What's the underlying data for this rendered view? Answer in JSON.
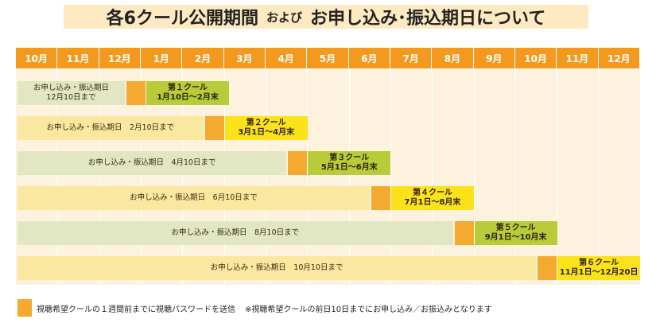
{
  "title": {
    "main": "各6クール公開期間",
    "mid": "および",
    "tail": "お申し込み･振込期日について"
  },
  "months": [
    "10月",
    "11月",
    "12月",
    "1月",
    "2月",
    "3月",
    "4月",
    "5月",
    "6月",
    "7月",
    "8月",
    "9月",
    "10月",
    "11月",
    "12月"
  ],
  "rows": [
    {
      "deadline_lines": [
        "お申し込み・振込期日",
        "12月10日まで"
      ],
      "cool_name": "第１クール",
      "cool_period": "1月10日～2月末",
      "style": "green"
    },
    {
      "deadline_lines": [
        "お申し込み・振込期日　2月10日まで"
      ],
      "cool_name": "第２クール",
      "cool_period": "3月1日～4月末",
      "style": "yellow"
    },
    {
      "deadline_lines": [
        "お申し込み・振込期日　4月10日まで"
      ],
      "cool_name": "第３クール",
      "cool_period": "5月1日～6月末",
      "style": "green"
    },
    {
      "deadline_lines": [
        "お申し込み・振込期日　6月10日まで"
      ],
      "cool_name": "第４クール",
      "cool_period": "7月1日～8月末",
      "style": "yellow"
    },
    {
      "deadline_lines": [
        "お申し込み・振込期日　8月10日まで"
      ],
      "cool_name": "第５クール",
      "cool_period": "9月1日～10月末",
      "style": "green"
    },
    {
      "deadline_lines": [
        "お申し込み・振込期日　10月10日まで"
      ],
      "cool_name": "第６クール",
      "cool_period": "11月1日～12月20日",
      "style": "yellow"
    }
  ],
  "legend": {
    "marker_text": "視聴希望クールの１週間前までに視聴パスワードを送信",
    "note": "※視聴希望クールの前日10日までにお申し込み／お振込みとなります"
  },
  "colors": {
    "accent_orange": "#f39a1e",
    "marker": "#f4a930",
    "cool_green": "#b8cc3a",
    "cool_yellow": "#fbe21a",
    "bar_green": "#e1e7c2",
    "bar_yellow": "#fbe8a0"
  }
}
